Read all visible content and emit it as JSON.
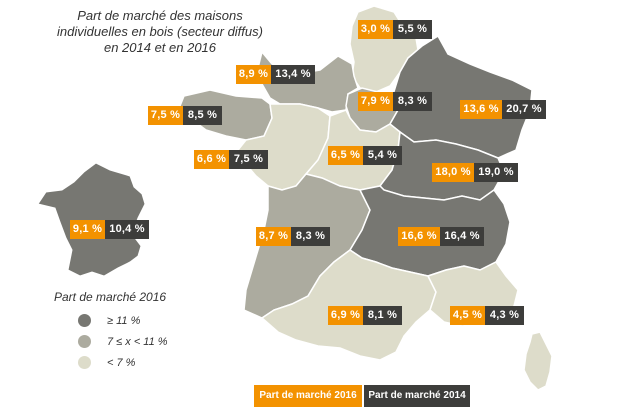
{
  "title": {
    "line1": "Part de marché des maisons",
    "line2": "individuelles en bois (secteur diffus)",
    "line3": "en 2014 et en 2016"
  },
  "colors": {
    "orange_2016": "#f39200",
    "dark_2014": "#3d3d3b",
    "high": "#777772",
    "mid": "#acab9f",
    "low": "#dddcca"
  },
  "regions": [
    {
      "id": "nord",
      "v2016": "3,0 %",
      "v2014": "5,5 %",
      "category": "low"
    },
    {
      "id": "normandie",
      "v2016": "8,9 %",
      "v2014": "13,4 %",
      "category": "mid"
    },
    {
      "id": "bretagne",
      "v2016": "7,5 %",
      "v2014": "8,5 %",
      "category": "mid"
    },
    {
      "id": "ile-de-france",
      "v2016": "7,9 %",
      "v2014": "8,3 %",
      "category": "mid"
    },
    {
      "id": "grand-est",
      "v2016": "13,6 %",
      "v2014": "20,7 %",
      "category": "high"
    },
    {
      "id": "pays-de-la-loire",
      "v2016": "6,6 %",
      "v2014": "7,5 %",
      "category": "low"
    },
    {
      "id": "centre-val-de-loire",
      "v2016": "6,5 %",
      "v2014": "5,4 %",
      "category": "low"
    },
    {
      "id": "bourgogne-franche-comte",
      "v2016": "18,0 %",
      "v2014": "19,0 %",
      "category": "high"
    },
    {
      "id": "france-total",
      "v2016": "9,1 %",
      "v2014": "10,4 %",
      "category": "mid"
    },
    {
      "id": "nouvelle-aquitaine",
      "v2016": "8,7 %",
      "v2014": "8,3 %",
      "category": "mid"
    },
    {
      "id": "auvergne-rhone-alpes",
      "v2016": "16,6 %",
      "v2014": "16,4 %",
      "category": "high"
    },
    {
      "id": "occitanie",
      "v2016": "6,9 %",
      "v2014": "8,1 %",
      "category": "low"
    },
    {
      "id": "paca",
      "v2016": "4,5 %",
      "v2014": "4,3 %",
      "category": "low"
    },
    {
      "id": "corse",
      "category": "low"
    }
  ],
  "legend": {
    "title": "Part de marché 2016",
    "items": [
      {
        "label": "≥ 11 %",
        "category": "high"
      },
      {
        "label": "7 ≤ x < 11 %",
        "category": "mid"
      },
      {
        "label": "< 7 %",
        "category": "low"
      }
    ]
  },
  "key": {
    "label_2016": "Part de marché 2016",
    "label_2014": "Part de marché 2014"
  }
}
